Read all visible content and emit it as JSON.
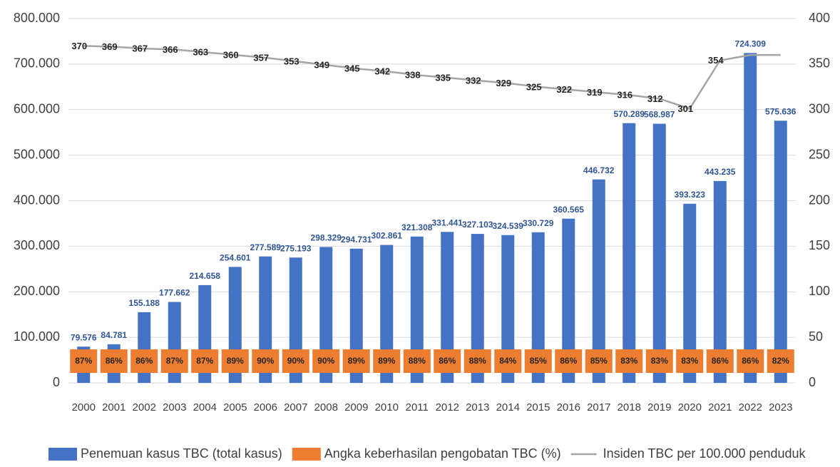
{
  "chart_data": {
    "type": "bar",
    "categories": [
      "2000",
      "2001",
      "2002",
      "2003",
      "2004",
      "2005",
      "2006",
      "2007",
      "2008",
      "2009",
      "2010",
      "2011",
      "2012",
      "2013",
      "2014",
      "2015",
      "2016",
      "2017",
      "2018",
      "2019",
      "2020",
      "2021",
      "2022",
      "2023"
    ],
    "series": [
      {
        "name": "Penemuan kasus TBC (total kasus)",
        "color": "#4472c4",
        "values": [
          79576,
          84781,
          155188,
          177662,
          214658,
          254601,
          277589,
          275193,
          298329,
          294731,
          302861,
          321308,
          331441,
          327103,
          324539,
          330729,
          360565,
          446732,
          570289,
          568987,
          393323,
          443235,
          724309,
          575636
        ],
        "value_labels": [
          "79.576",
          "84.781",
          "155.188",
          "177.662",
          "214.658",
          "254.601",
          "277.589",
          "275.193",
          "298.329",
          "294.731",
          "302.861",
          "321.308",
          "331.441",
          "327.103",
          "324.539",
          "330.729",
          "360.565",
          "446.732",
          "570.289",
          "568.987",
          "393.323",
          "443.235",
          "724.309",
          "575.636"
        ]
      },
      {
        "name": "Angka keberhasilan pengobatan TBC (%)",
        "color": "#ed7d31",
        "values": [
          87,
          86,
          86,
          87,
          87,
          89,
          90,
          90,
          90,
          89,
          89,
          88,
          86,
          88,
          84,
          85,
          86,
          85,
          83,
          83,
          83,
          86,
          86,
          82
        ],
        "value_labels": [
          "87%",
          "86%",
          "86%",
          "87%",
          "87%",
          "89%",
          "90%",
          "90%",
          "90%",
          "89%",
          "89%",
          "88%",
          "86%",
          "88%",
          "84%",
          "85%",
          "86%",
          "85%",
          "83%",
          "83%",
          "83%",
          "86%",
          "86%",
          "82%"
        ]
      },
      {
        "name": "Insiden TBC per 100.000 penduduk",
        "color": "#a5a5a5",
        "axis": "y2",
        "values": [
          370,
          369,
          367,
          366,
          363,
          360,
          357,
          353,
          349,
          345,
          342,
          338,
          335,
          332,
          329,
          325,
          322,
          319,
          316,
          312,
          301,
          354,
          360,
          360
        ],
        "value_labels": [
          "370",
          "369",
          "367",
          "366",
          "363",
          "360",
          "357",
          "353",
          "349",
          "345",
          "342",
          "338",
          "335",
          "332",
          "329",
          "325",
          "322",
          "319",
          "316",
          "312",
          "301",
          "354",
          null,
          null
        ]
      }
    ],
    "ylim": [
      0,
      800000
    ],
    "yticks": [
      0,
      {
        "value": 100000,
        "label": "100.000"
      },
      {
        "value": 200000,
        "label": "200.000"
      },
      {
        "value": 300000,
        "label": "300.000"
      },
      {
        "value": 400000,
        "label": "400.000"
      },
      {
        "value": 500000,
        "label": "500.000"
      },
      {
        "value": 600000,
        "label": "600.000"
      },
      {
        "value": 700000,
        "label": "700.000"
      },
      {
        "value": 800000,
        "label": "800.000"
      }
    ],
    "y2lim": [
      0,
      400
    ],
    "y2ticks": [
      0,
      50,
      100,
      150,
      200,
      250,
      300,
      350,
      400
    ],
    "grid": true,
    "legend": "bottom"
  }
}
